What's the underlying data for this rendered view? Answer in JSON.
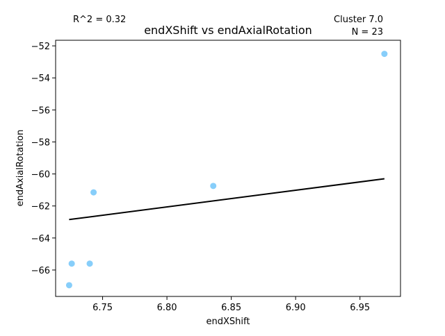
{
  "chart_data": {
    "type": "scatter",
    "title": "endXShift vs endAxialRotation",
    "xlabel": "endXShift",
    "ylabel": "endAxialRotation",
    "xlim": [
      6.7135,
      6.9815
    ],
    "ylim": [
      -67.65,
      -51.65
    ],
    "x_ticks": [
      6.75,
      6.8,
      6.85,
      6.9,
      6.95
    ],
    "x_tick_labels": [
      "6.75",
      "6.80",
      "6.85",
      "6.90",
      "6.95"
    ],
    "y_ticks": [
      -66,
      -64,
      -62,
      -60,
      -58,
      -56,
      -54,
      -52
    ],
    "y_tick_labels": [
      "−66",
      "−64",
      "−62",
      "−60",
      "−58",
      "−56",
      "−54",
      "−52"
    ],
    "grid": false,
    "points": [
      {
        "x": 6.724,
        "y": -66.95
      },
      {
        "x": 6.726,
        "y": -65.6
      },
      {
        "x": 6.74,
        "y": -65.6
      },
      {
        "x": 6.743,
        "y": -61.15
      },
      {
        "x": 6.836,
        "y": -60.75
      },
      {
        "x": 6.969,
        "y": -52.5
      }
    ],
    "fit_line": {
      "x": [
        6.724,
        6.969
      ],
      "y": [
        -62.85,
        -60.3
      ]
    },
    "annotations": {
      "r_squared": "R^2 = 0.32",
      "cluster": "Cluster 7.0",
      "n": "N = 23"
    },
    "colors": {
      "points": "#87cefa",
      "fit_line": "#000000",
      "axes": "#000000"
    }
  }
}
